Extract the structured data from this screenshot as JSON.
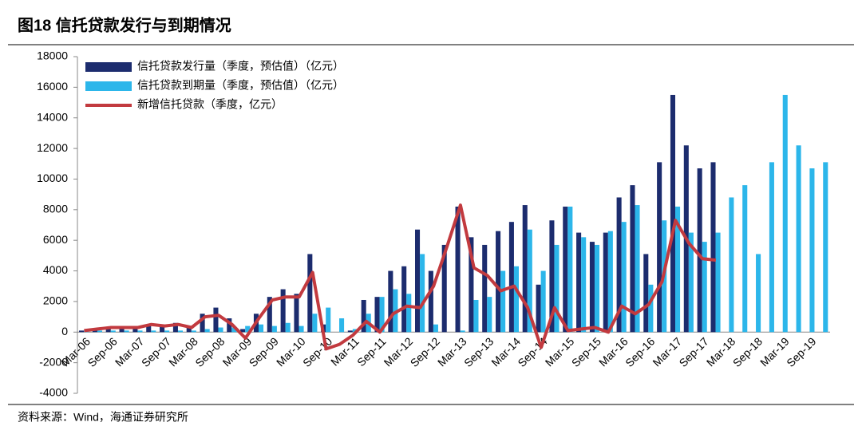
{
  "title": "图18 信托贷款发行与到期情况",
  "source": "资料来源：Wind，海通证券研究所",
  "chart_data": {
    "type": "bar",
    "categories": [
      "Mar-06",
      null,
      "Sep-06",
      null,
      "Mar-07",
      null,
      "Sep-07",
      null,
      "Mar-08",
      null,
      "Sep-08",
      null,
      "Mar-09",
      null,
      "Sep-09",
      null,
      "Mar-10",
      null,
      "Sep-10",
      null,
      "Mar-11",
      null,
      "Sep-11",
      null,
      "Mar-12",
      null,
      "Sep-12",
      null,
      "Mar-13",
      null,
      "Sep-13",
      null,
      "Mar-14",
      null,
      "Sep-14",
      null,
      "Mar-15",
      null,
      "Sep-15",
      null,
      "Mar-16",
      null,
      "Sep-16",
      null,
      "Mar-17",
      null,
      "Sep-17",
      null,
      "Mar-18",
      null,
      "Sep-18",
      null,
      "Mar-19",
      null,
      "Sep-19",
      null
    ],
    "series": [
      {
        "name": "信托贷款发行量（季度，预估值）（亿元）",
        "color": "#1c2c6e",
        "kind": "bar",
        "values": [
          100,
          200,
          300,
          300,
          400,
          500,
          400,
          600,
          400,
          1200,
          1600,
          900,
          200,
          1200,
          2300,
          2800,
          2500,
          5100,
          500,
          0,
          100,
          2100,
          2300,
          4000,
          4300,
          6700,
          4000,
          5700,
          8200,
          6200,
          5700,
          6600,
          7200,
          8300,
          3100,
          7300,
          8200,
          6500,
          5900,
          6500,
          8800,
          9600,
          5100,
          11100,
          15500,
          12200,
          10700,
          11100,
          null,
          null,
          null,
          null,
          null,
          null,
          null,
          null
        ]
      },
      {
        "name": "信托贷款到期量（季度，预估值）（亿元）",
        "color": "#2cb6ea",
        "kind": "bar",
        "values": [
          100,
          100,
          100,
          100,
          100,
          100,
          100,
          100,
          100,
          200,
          300,
          300,
          400,
          500,
          400,
          600,
          400,
          1200,
          1600,
          900,
          200,
          1200,
          2300,
          2800,
          2500,
          5100,
          500,
          0,
          100,
          2100,
          2300,
          4000,
          4300,
          6700,
          4000,
          5700,
          8200,
          6200,
          5700,
          6600,
          7200,
          8300,
          3100,
          7300,
          8200,
          6500,
          5900,
          6500,
          8800,
          9600,
          5100,
          11100,
          15500,
          12200,
          10700,
          11100
        ]
      },
      {
        "name": "新增信托贷款（季度，亿元）",
        "color": "#c23a3f",
        "kind": "line",
        "values": [
          100,
          200,
          300,
          300,
          300,
          500,
          400,
          500,
          300,
          1000,
          1100,
          500,
          -400,
          900,
          2100,
          2300,
          2300,
          3900,
          -1100,
          -800,
          -200,
          700,
          0,
          1200,
          1700,
          1600,
          3000,
          5600,
          8300,
          4200,
          3700,
          2700,
          3000,
          1600,
          -1000,
          1600,
          100,
          200,
          300,
          0,
          1700,
          1200,
          1800,
          3300,
          7300,
          5800,
          4800,
          4700,
          null,
          null,
          null,
          null,
          null,
          null,
          null,
          null
        ]
      }
    ],
    "ylim": [
      -4000,
      18000
    ],
    "yticks": [
      -4000,
      -2000,
      0,
      2000,
      4000,
      6000,
      8000,
      10000,
      12000,
      14000,
      16000,
      18000
    ]
  }
}
